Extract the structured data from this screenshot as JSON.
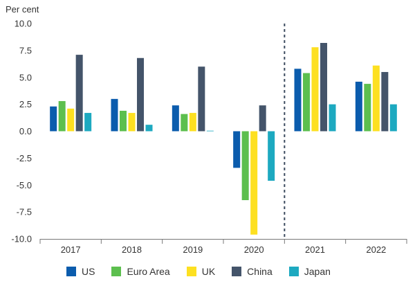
{
  "chart_data": {
    "type": "bar",
    "unit_label": "Per cent",
    "categories": [
      "2017",
      "2018",
      "2019",
      "2020",
      "2021",
      "2022"
    ],
    "series": [
      {
        "name": "US",
        "color": "#0b5cad",
        "values": [
          2.3,
          3.0,
          2.4,
          -3.4,
          5.8,
          4.6
        ]
      },
      {
        "name": "Euro Area",
        "color": "#5cbf4e",
        "values": [
          2.8,
          1.9,
          1.6,
          -6.4,
          5.4,
          4.4
        ]
      },
      {
        "name": "UK",
        "color": "#fde021",
        "values": [
          2.1,
          1.7,
          1.7,
          -9.6,
          7.8,
          6.1
        ]
      },
      {
        "name": "China",
        "color": "#44546a",
        "values": [
          7.1,
          6.8,
          6.0,
          2.4,
          8.2,
          5.5
        ]
      },
      {
        "name": "Japan",
        "color": "#1da9c0",
        "values": [
          1.7,
          0.6,
          0.05,
          -4.6,
          2.5,
          2.5
        ]
      }
    ],
    "ylim": [
      -10,
      10
    ],
    "yticks": [
      "10.0",
      "7.5",
      "5.0",
      "2.5",
      "0.0",
      "-2.5",
      "-5.0",
      "-7.5",
      "-10.0"
    ],
    "ytick_values": [
      10,
      7.5,
      5,
      2.5,
      0,
      -2.5,
      -5,
      -7.5,
      -10
    ],
    "forecast_divider_after": "2020",
    "grid": false,
    "legend_position": "bottom"
  }
}
